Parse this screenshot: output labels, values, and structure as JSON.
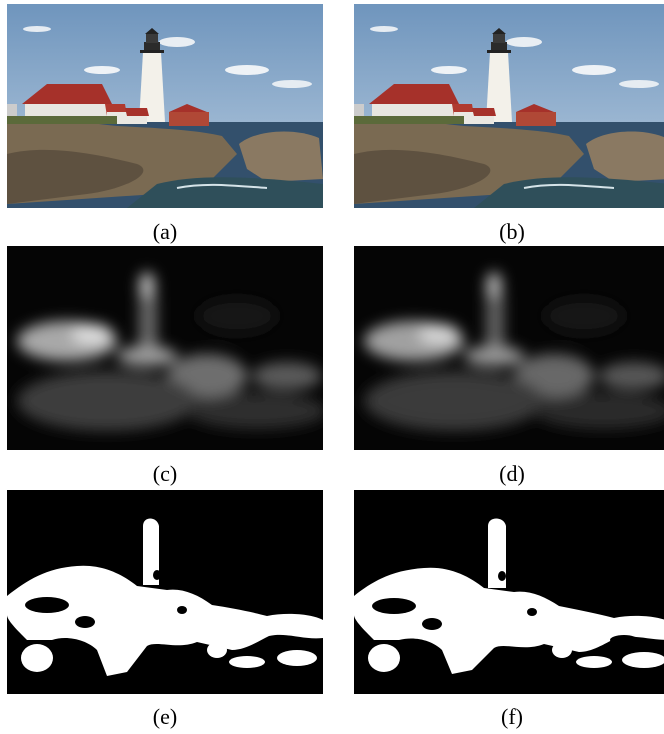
{
  "figure": {
    "panels": [
      {
        "id": "a",
        "label": "(a)",
        "kind": "photo",
        "alt": "lighthouse photograph"
      },
      {
        "id": "b",
        "label": "(b)",
        "kind": "photo",
        "alt": "lighthouse photograph"
      },
      {
        "id": "c",
        "label": "(c)",
        "kind": "saliency",
        "alt": "grayscale saliency map"
      },
      {
        "id": "d",
        "label": "(d)",
        "kind": "saliency",
        "alt": "grayscale saliency map"
      },
      {
        "id": "e",
        "label": "(e)",
        "kind": "mask",
        "alt": "binary segmentation mask"
      },
      {
        "id": "f",
        "label": "(f)",
        "kind": "mask",
        "alt": "binary segmentation mask"
      }
    ]
  }
}
